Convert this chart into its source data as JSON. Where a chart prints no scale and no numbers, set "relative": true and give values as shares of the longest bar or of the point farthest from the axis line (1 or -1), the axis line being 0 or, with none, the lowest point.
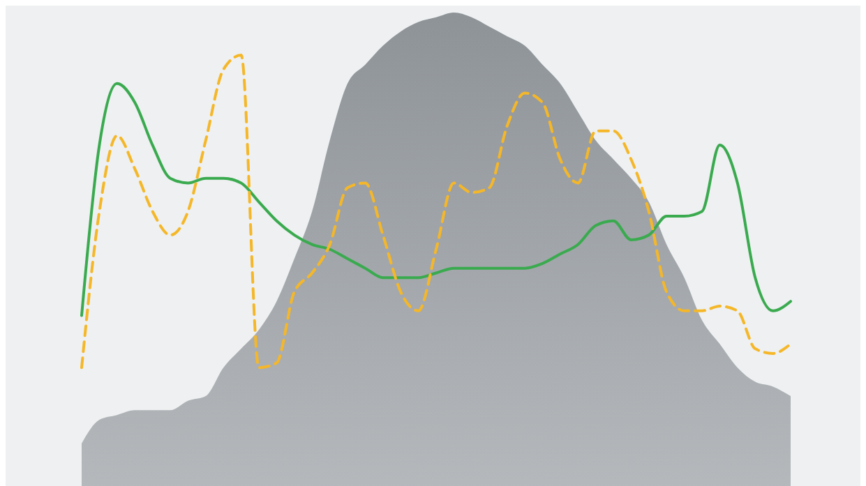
{
  "chart_data": {
    "type": "line",
    "relative": true,
    "grid": false,
    "legend": false,
    "marker": "none",
    "categories": [
      null,
      null,
      null,
      null,
      null,
      null,
      null,
      null,
      null,
      null,
      null,
      null,
      null,
      null,
      null,
      null,
      null,
      null,
      null,
      null,
      null,
      null,
      null,
      null,
      null,
      null,
      null,
      null,
      null,
      null,
      null,
      null,
      null,
      null,
      null,
      null,
      null,
      null,
      null,
      null,
      null
    ],
    "series": [
      {
        "type": "area",
        "color": "#8e9398",
        "values": [
          0.09,
          0.14,
          0.15,
          0.16,
          0.16,
          0.16,
          0.18,
          0.19,
          0.25,
          0.29,
          0.33,
          0.39,
          0.48,
          0.58,
          0.73,
          0.85,
          0.89,
          0.93,
          0.96,
          0.98,
          0.99,
          1,
          0.99,
          0.97,
          0.95,
          0.93,
          0.89,
          0.85,
          0.79,
          0.73,
          0.69,
          0.65,
          0.6,
          0.51,
          0.44,
          0.35,
          0.3,
          0.25,
          0.22,
          0.21,
          0.19
        ]
      },
      {
        "color": "#3aaa4f",
        "line_style": "solid",
        "values": [
          0.36,
          0.72,
          0.85,
          0.81,
          0.72,
          0.65,
          0.64,
          0.65,
          0.65,
          0.64,
          0.6,
          0.56,
          0.53,
          0.51,
          0.5,
          0.48,
          0.46,
          0.44,
          0.44,
          0.44,
          0.45,
          0.46,
          0.46,
          0.46,
          0.46,
          0.46,
          0.47,
          0.49,
          0.51,
          0.55,
          0.56,
          0.52,
          0.53,
          0.57,
          0.57,
          0.58,
          0.72,
          0.64,
          0.44,
          0.37,
          0.39
        ]
      },
      {
        "color": "#f5b728",
        "line_style": "dashed",
        "values": [
          0.25,
          0.58,
          0.74,
          0.67,
          0.58,
          0.53,
          0.58,
          0.73,
          0.88,
          0.91,
          0.25,
          0.26,
          0.41,
          0.45,
          0.51,
          0.63,
          0.64,
          0.53,
          0.41,
          0.37,
          0.5,
          0.64,
          0.62,
          0.63,
          0.76,
          0.83,
          0.81,
          0.69,
          0.64,
          0.75,
          0.75,
          0.69,
          0.58,
          0.41,
          0.37,
          0.37,
          0.38,
          0.37,
          0.29,
          0.28,
          0.3
        ]
      }
    ]
  }
}
